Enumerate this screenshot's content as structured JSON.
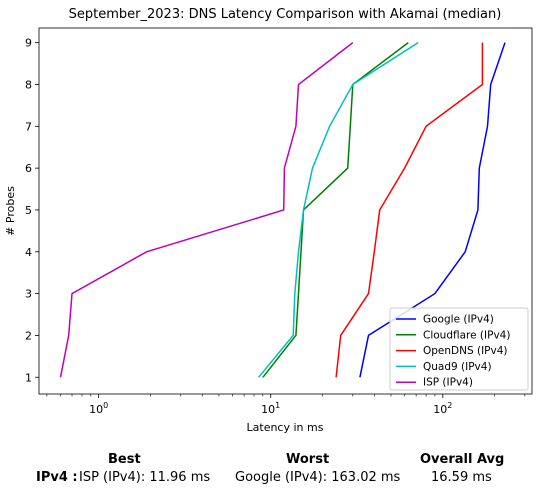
{
  "chart_data": {
    "type": "line",
    "title": "September_2023: DNS Latency Comparison with Akamai (median)",
    "xlabel": "Latency in ms",
    "ylabel": "# Probes",
    "xscale": "log",
    "xlim": [
      0.45,
      330
    ],
    "ylim": [
      0.6,
      9.35
    ],
    "xticks": [
      1,
      10,
      100
    ],
    "xtick_labels": [
      "10^0",
      "10^1",
      "10^2"
    ],
    "yticks": [
      1,
      2,
      3,
      4,
      5,
      6,
      7,
      8,
      9
    ],
    "legend_position": "lower-right",
    "grid": false,
    "series": [
      {
        "name": "Google (IPv4)",
        "color": "#0000ff",
        "points": [
          [
            33,
            1
          ],
          [
            37,
            2
          ],
          [
            90,
            3
          ],
          [
            135,
            4
          ],
          [
            160,
            5
          ],
          [
            163,
            6
          ],
          [
            182,
            7
          ],
          [
            190,
            8
          ],
          [
            230,
            9
          ]
        ]
      },
      {
        "name": "Cloudflare (IPv4)",
        "color": "#008000",
        "points": [
          [
            9,
            1
          ],
          [
            14,
            2
          ],
          [
            14.5,
            3
          ],
          [
            15,
            4
          ],
          [
            15.5,
            5
          ],
          [
            28,
            6
          ],
          [
            29,
            7
          ],
          [
            30,
            8
          ],
          [
            63,
            9
          ]
        ]
      },
      {
        "name": "OpenDNS (IPv4)",
        "color": "#ff0000",
        "points": [
          [
            24,
            1
          ],
          [
            25.5,
            2
          ],
          [
            37,
            3
          ],
          [
            40,
            4
          ],
          [
            43,
            5
          ],
          [
            60,
            6
          ],
          [
            80,
            7
          ],
          [
            170,
            8
          ],
          [
            170,
            9
          ]
        ]
      },
      {
        "name": "Quad9 (IPv4)",
        "color": "#00bfbf",
        "points": [
          [
            8.5,
            1
          ],
          [
            13.5,
            2
          ],
          [
            13.8,
            3
          ],
          [
            14.5,
            4
          ],
          [
            15.5,
            5
          ],
          [
            17.5,
            6
          ],
          [
            22,
            7
          ],
          [
            30,
            8
          ],
          [
            72,
            9
          ]
        ]
      },
      {
        "name": "ISP (IPv4)",
        "color": "#bf00bf",
        "points": [
          [
            0.6,
            1
          ],
          [
            0.67,
            2
          ],
          [
            0.7,
            3
          ],
          [
            1.9,
            4
          ],
          [
            11.9,
            5
          ],
          [
            12,
            6
          ],
          [
            14,
            7
          ],
          [
            14.5,
            8
          ],
          [
            30,
            9
          ]
        ]
      }
    ]
  },
  "summary": {
    "best_header": "Best",
    "worst_header": "Worst",
    "avg_header": "Overall Avg",
    "row_label": "IPv4 :",
    "best_value": "ISP (IPv4): 11.96 ms",
    "worst_value": "Google (IPv4): 163.02 ms",
    "avg_value": "16.59 ms"
  }
}
